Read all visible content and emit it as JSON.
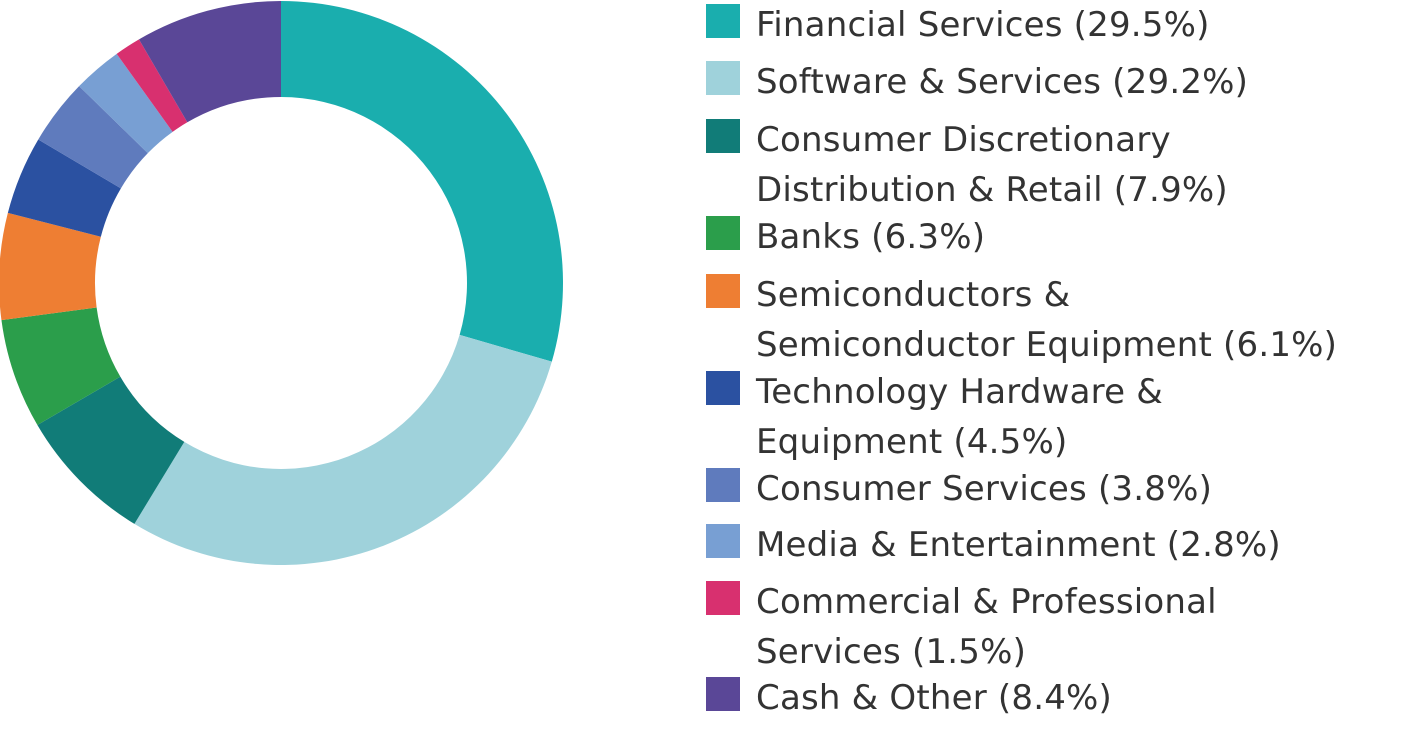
{
  "chart_data": {
    "type": "pie",
    "donut": true,
    "title": "",
    "legend_position": "right",
    "slices": [
      {
        "label": "Financial Services (29.5%)",
        "lines": [
          "Financial Services (29.5%)"
        ],
        "value": 29.5,
        "color": "#1aaeae"
      },
      {
        "label": "Software & Services (29.2%)",
        "lines": [
          "Software & Services (29.2%)"
        ],
        "value": 29.2,
        "color": "#9fd2db"
      },
      {
        "label": "Consumer Discretionary Distribution & Retail (7.9%)",
        "lines": [
          "Consumer Discretionary",
          "Distribution & Retail (7.9%)"
        ],
        "value": 7.9,
        "color": "#117c78"
      },
      {
        "label": "Banks (6.3%)",
        "lines": [
          "Banks (6.3%)"
        ],
        "value": 6.3,
        "color": "#2b9e4b"
      },
      {
        "label": "Semiconductors & Semiconductor Equipment (6.1%)",
        "lines": [
          "Semiconductors &",
          "Semiconductor Equipment (6.1%)"
        ],
        "value": 6.1,
        "color": "#ee7e33"
      },
      {
        "label": "Technology Hardware & Equipment (4.5%)",
        "lines": [
          "Technology Hardware &",
          "Equipment (4.5%)"
        ],
        "value": 4.5,
        "color": "#2b51a1"
      },
      {
        "label": "Consumer Services (3.8%)",
        "lines": [
          "Consumer Services (3.8%)"
        ],
        "value": 3.8,
        "color": "#5f7bbd"
      },
      {
        "label": "Media & Entertainment (2.8%)",
        "lines": [
          "Media & Entertainment (2.8%)"
        ],
        "value": 2.8,
        "color": "#789fd3"
      },
      {
        "label": "Commercial & Professional Services (1.5%)",
        "lines": [
          "Commercial & Professional",
          "Services (1.5%)"
        ],
        "value": 1.5,
        "color": "#d8306f"
      },
      {
        "label": "Cash & Other (8.4%)",
        "lines": [
          "Cash & Other (8.4%)"
        ],
        "value": 8.4,
        "color": "#5a4797"
      }
    ]
  }
}
